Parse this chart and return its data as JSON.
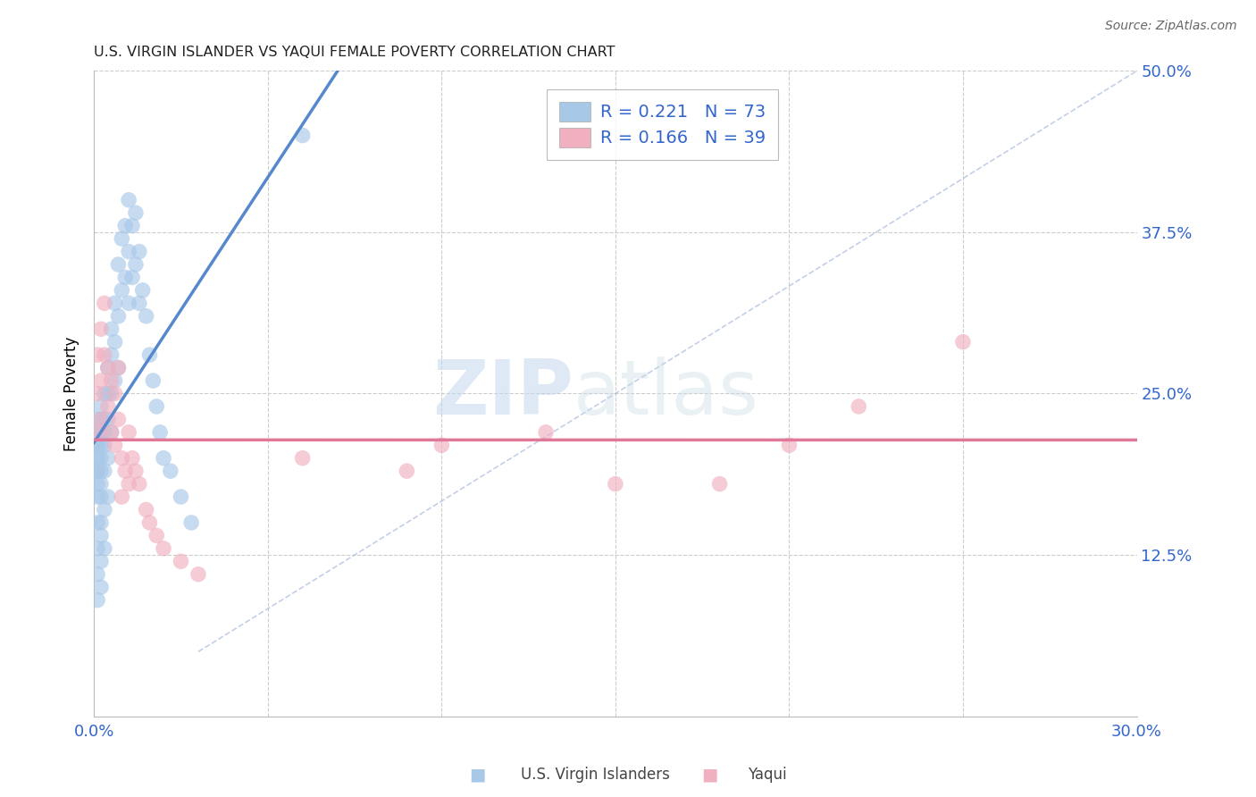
{
  "title": "U.S. VIRGIN ISLANDER VS YAQUI FEMALE POVERTY CORRELATION CHART",
  "source": "Source: ZipAtlas.com",
  "ylabel": "Female Poverty",
  "xlim": [
    0.0,
    0.3
  ],
  "ylim": [
    0.0,
    0.5
  ],
  "xticks": [
    0.0,
    0.05,
    0.1,
    0.15,
    0.2,
    0.25,
    0.3
  ],
  "xtick_labels": [
    "0.0%",
    "",
    "",
    "",
    "",
    "",
    "30.0%"
  ],
  "ytick_labels_right": [
    "50.0%",
    "37.5%",
    "25.0%",
    "12.5%"
  ],
  "yticks_right": [
    0.5,
    0.375,
    0.25,
    0.125
  ],
  "legend_r1": "R = 0.221",
  "legend_n1": "N = 73",
  "legend_r2": "R = 0.166",
  "legend_n2": "N = 39",
  "color_blue": "#a8c8e8",
  "color_blue_line": "#5588cc",
  "color_pink": "#f0b0c0",
  "color_pink_line": "#e07898",
  "color_blue_text": "#3366cc",
  "color_gridline": "#cccccc",
  "watermark_zip": "ZIP",
  "watermark_atlas": "atlas",
  "label1": "U.S. Virgin Islanders",
  "label2": "Yaqui",
  "vi_x": [
    0.001,
    0.001,
    0.001,
    0.001,
    0.001,
    0.001,
    0.001,
    0.001,
    0.001,
    0.001,
    0.001,
    0.001,
    0.001,
    0.001,
    0.001,
    0.002,
    0.002,
    0.002,
    0.002,
    0.002,
    0.002,
    0.002,
    0.002,
    0.002,
    0.002,
    0.002,
    0.002,
    0.003,
    0.003,
    0.003,
    0.003,
    0.003,
    0.003,
    0.003,
    0.004,
    0.004,
    0.004,
    0.004,
    0.004,
    0.005,
    0.005,
    0.005,
    0.005,
    0.006,
    0.006,
    0.006,
    0.007,
    0.007,
    0.007,
    0.008,
    0.008,
    0.009,
    0.009,
    0.01,
    0.01,
    0.01,
    0.011,
    0.011,
    0.012,
    0.012,
    0.013,
    0.013,
    0.014,
    0.015,
    0.016,
    0.017,
    0.018,
    0.019,
    0.02,
    0.022,
    0.025,
    0.028,
    0.06
  ],
  "vi_y": [
    0.21,
    0.22,
    0.2,
    0.19,
    0.23,
    0.18,
    0.21,
    0.2,
    0.22,
    0.19,
    0.17,
    0.15,
    0.13,
    0.11,
    0.09,
    0.22,
    0.21,
    0.2,
    0.19,
    0.23,
    0.24,
    0.18,
    0.17,
    0.15,
    0.14,
    0.12,
    0.1,
    0.25,
    0.23,
    0.22,
    0.21,
    0.19,
    0.16,
    0.13,
    0.27,
    0.25,
    0.23,
    0.2,
    0.17,
    0.3,
    0.28,
    0.25,
    0.22,
    0.32,
    0.29,
    0.26,
    0.35,
    0.31,
    0.27,
    0.37,
    0.33,
    0.38,
    0.34,
    0.4,
    0.36,
    0.32,
    0.38,
    0.34,
    0.39,
    0.35,
    0.36,
    0.32,
    0.33,
    0.31,
    0.28,
    0.26,
    0.24,
    0.22,
    0.2,
    0.19,
    0.17,
    0.15,
    0.45
  ],
  "yaqui_x": [
    0.001,
    0.001,
    0.001,
    0.002,
    0.002,
    0.002,
    0.003,
    0.003,
    0.004,
    0.004,
    0.005,
    0.005,
    0.006,
    0.006,
    0.007,
    0.007,
    0.008,
    0.008,
    0.009,
    0.01,
    0.01,
    0.011,
    0.012,
    0.013,
    0.015,
    0.016,
    0.018,
    0.02,
    0.025,
    0.03,
    0.06,
    0.09,
    0.1,
    0.13,
    0.15,
    0.18,
    0.2,
    0.22,
    0.25
  ],
  "yaqui_y": [
    0.28,
    0.25,
    0.22,
    0.3,
    0.26,
    0.23,
    0.32,
    0.28,
    0.27,
    0.24,
    0.26,
    0.22,
    0.25,
    0.21,
    0.27,
    0.23,
    0.2,
    0.17,
    0.19,
    0.22,
    0.18,
    0.2,
    0.19,
    0.18,
    0.16,
    0.15,
    0.14,
    0.13,
    0.12,
    0.11,
    0.2,
    0.19,
    0.21,
    0.22,
    0.18,
    0.18,
    0.21,
    0.24,
    0.29
  ]
}
